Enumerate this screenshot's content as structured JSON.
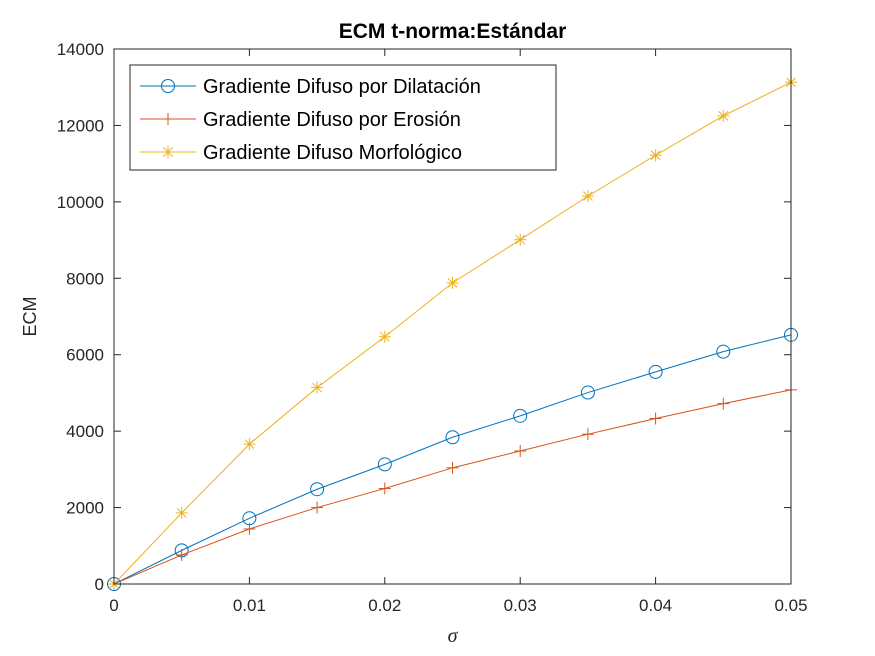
{
  "chart_data": {
    "type": "line",
    "title": "ECM t-norma:Estándar",
    "xlabel": "σ",
    "ylabel": "ECM",
    "xlim": [
      0,
      0.05
    ],
    "ylim": [
      0,
      14000
    ],
    "x_ticks": [
      "0",
      "0.01",
      "0.02",
      "0.03",
      "0.04",
      "0.05"
    ],
    "y_ticks": [
      "0",
      "2000",
      "4000",
      "6000",
      "8000",
      "10000",
      "12000",
      "14000"
    ],
    "grid": false,
    "legend_position": "top-left",
    "x": [
      0,
      0.005,
      0.01,
      0.015,
      0.02,
      0.025,
      0.03,
      0.035,
      0.04,
      0.045,
      0.05
    ],
    "series": [
      {
        "name": "Gradiente Difuso por Dilatación",
        "color": "#0072BD",
        "marker": "circle",
        "values": [
          0,
          880,
          1720,
          2480,
          3130,
          3840,
          4400,
          5010,
          5550,
          6080,
          6520
        ]
      },
      {
        "name": "Gradiente Difuso por Erosión",
        "color": "#D95319",
        "marker": "plus",
        "values": [
          0,
          760,
          1440,
          2000,
          2500,
          3040,
          3480,
          3920,
          4330,
          4720,
          5080
        ]
      },
      {
        "name": "Gradiente Difuso Morfológico",
        "color": "#EDB120",
        "marker": "asterisk",
        "values": [
          0,
          1860,
          3660,
          5140,
          6470,
          7880,
          9010,
          10150,
          11220,
          12250,
          13130
        ]
      }
    ]
  }
}
